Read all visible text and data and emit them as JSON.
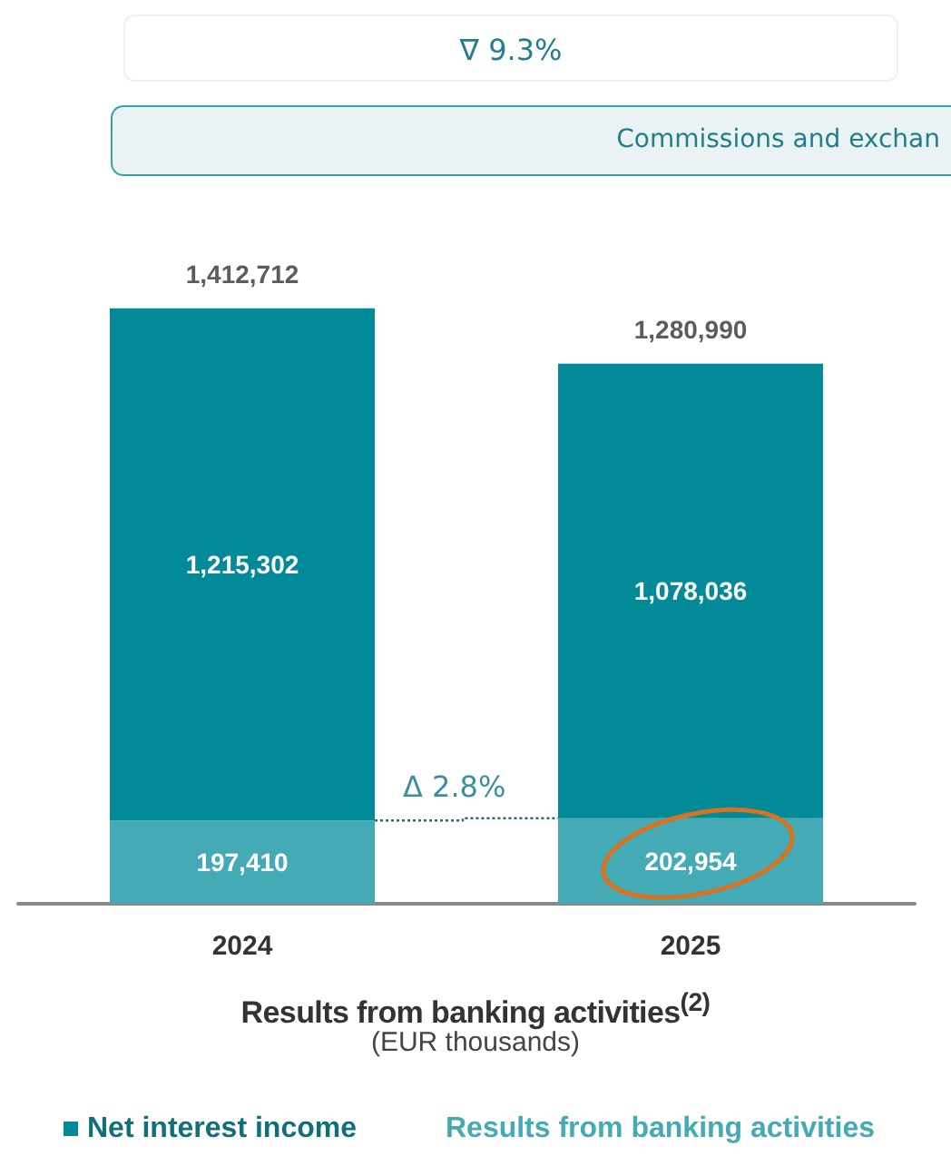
{
  "chart_data": {
    "type": "bar",
    "stacked": true,
    "categories": [
      "2024",
      "2025"
    ],
    "series": [
      {
        "name": "Results from banking activities",
        "color": "#44aab5",
        "values": [
          197410,
          202954
        ],
        "value_labels": [
          "197,410",
          "202,954"
        ]
      },
      {
        "name": "Net interest income",
        "color": "#028a98",
        "values": [
          1215302,
          1078036
        ],
        "value_labels": [
          "1,215,302",
          "1,078,036"
        ]
      }
    ],
    "totals": [
      "1,412,712",
      "1,280,990"
    ],
    "xlabel": "Results from banking activities$^{(2)}$",
    "annotations": [
      "∇ 9.3%",
      "Commissions and exchan",
      "Δ 2.8%",
      "(EUR thousands)"
    ],
    "legend": "bottom left"
  }
}
